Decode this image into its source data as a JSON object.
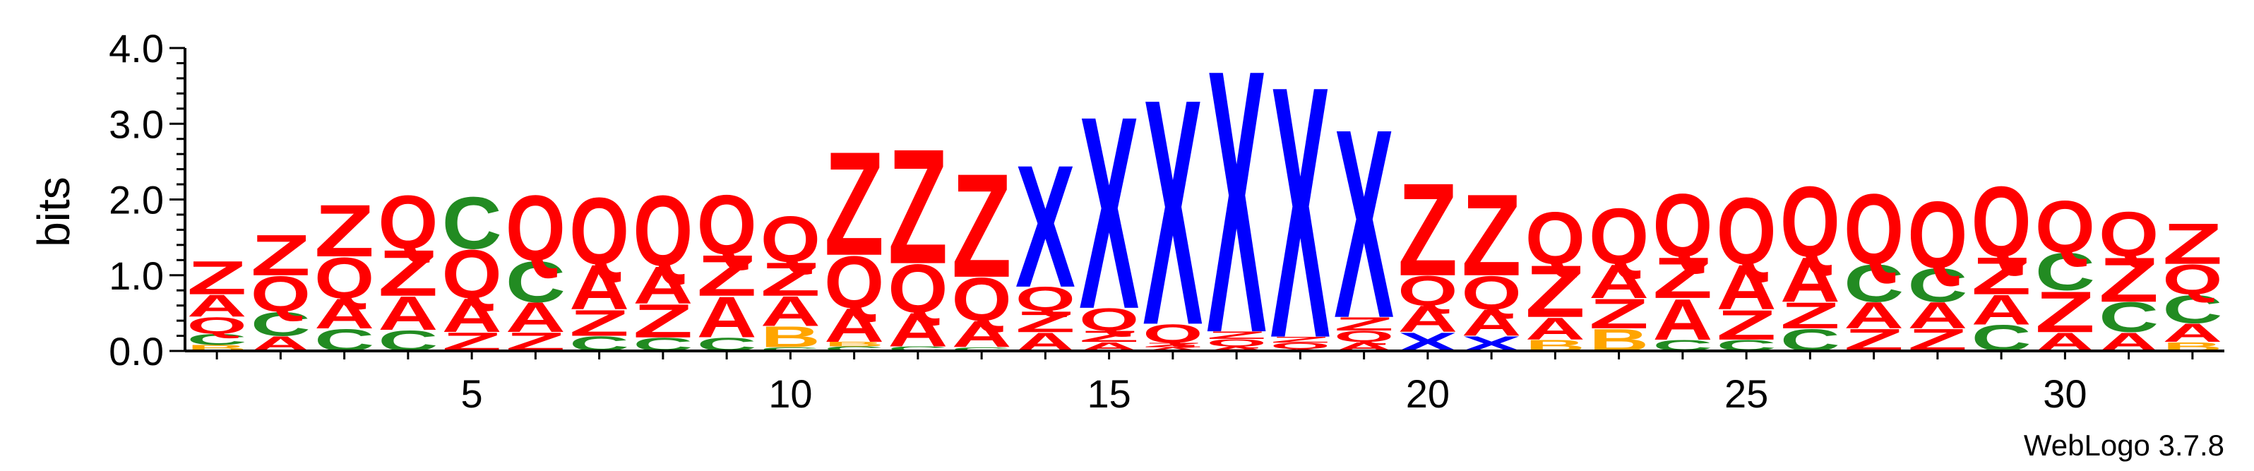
{
  "chart_data": {
    "type": "sequence-logo",
    "ylabel": "bits",
    "ylim": [
      0,
      4
    ],
    "yticks": [
      "0.0",
      "1.0",
      "2.0",
      "3.0",
      "4.0"
    ],
    "xticks": [
      5,
      10,
      15,
      20,
      25,
      30
    ],
    "xlim": [
      0.5,
      32.5
    ],
    "credit": "WebLogo 3.7.8",
    "colors": {
      "Z": "#ff0000",
      "Q": "#ff0000",
      "A": "#ff0000",
      "C": "#228b22",
      "X": "#0000ff",
      "B": "#ffa500"
    },
    "positions": [
      {
        "pos": 1,
        "stack": [
          [
            "B",
            0.08
          ],
          [
            "C",
            0.15
          ],
          [
            "Q",
            0.22
          ],
          [
            "A",
            0.3
          ],
          [
            "Z",
            0.45
          ]
        ]
      },
      {
        "pos": 2,
        "stack": [
          [
            "A",
            0.2
          ],
          [
            "C",
            0.32
          ],
          [
            "Q",
            0.48
          ],
          [
            "Z",
            0.55
          ]
        ]
      },
      {
        "pos": 3,
        "stack": [
          [
            "C",
            0.3
          ],
          [
            "A",
            0.4
          ],
          [
            "Q",
            0.55
          ],
          [
            "Z",
            0.7
          ]
        ]
      },
      {
        "pos": 4,
        "stack": [
          [
            "C",
            0.28
          ],
          [
            "A",
            0.45
          ],
          [
            "Z",
            0.62
          ],
          [
            "Q",
            0.72
          ]
        ]
      },
      {
        "pos": 5,
        "stack": [
          [
            "Z",
            0.25
          ],
          [
            "A",
            0.45
          ],
          [
            "Q",
            0.65
          ],
          [
            "C",
            0.7
          ]
        ]
      },
      {
        "pos": 6,
        "stack": [
          [
            "Z",
            0.25
          ],
          [
            "A",
            0.4
          ],
          [
            "C",
            0.55
          ],
          [
            "Q",
            0.88
          ]
        ]
      },
      {
        "pos": 7,
        "stack": [
          [
            "C",
            0.2
          ],
          [
            "Z",
            0.35
          ],
          [
            "A",
            0.6
          ],
          [
            "Q",
            0.9
          ]
        ]
      },
      {
        "pos": 8,
        "stack": [
          [
            "C",
            0.18
          ],
          [
            "Z",
            0.45
          ],
          [
            "A",
            0.5
          ],
          [
            "Q",
            0.95
          ]
        ]
      },
      {
        "pos": 9,
        "stack": [
          [
            "C",
            0.18
          ],
          [
            "A",
            0.55
          ],
          [
            "Z",
            0.55
          ],
          [
            "Q",
            0.8
          ]
        ]
      },
      {
        "pos": 10,
        "stack": [
          [
            "C",
            0.05
          ],
          [
            "B",
            0.28
          ],
          [
            "A",
            0.4
          ],
          [
            "Z",
            0.45
          ],
          [
            "Q",
            0.62
          ]
        ]
      },
      {
        "pos": 11,
        "stack": [
          [
            "C",
            0.06
          ],
          [
            "B",
            0.06
          ],
          [
            "A",
            0.45
          ],
          [
            "Q",
            0.7
          ],
          [
            "Z",
            1.4
          ]
        ]
      },
      {
        "pos": 12,
        "stack": [
          [
            "C",
            0.06
          ],
          [
            "A",
            0.45
          ],
          [
            "Q",
            0.65
          ],
          [
            "Z",
            1.55
          ]
        ]
      },
      {
        "pos": 13,
        "stack": [
          [
            "C",
            0.05
          ],
          [
            "A",
            0.35
          ],
          [
            "Q",
            0.58
          ],
          [
            "Z",
            1.4
          ]
        ]
      },
      {
        "pos": 14,
        "stack": [
          [
            "A",
            0.25
          ],
          [
            "Z",
            0.28
          ],
          [
            "Q",
            0.32
          ],
          [
            "X",
            1.65
          ]
        ]
      },
      {
        "pos": 15,
        "stack": [
          [
            "A",
            0.12
          ],
          [
            "Z",
            0.15
          ],
          [
            "Q",
            0.3
          ],
          [
            "X",
            2.6
          ]
        ]
      },
      {
        "pos": 16,
        "stack": [
          [
            "A",
            0.05
          ],
          [
            "Z",
            0.06
          ],
          [
            "Q",
            0.25
          ],
          [
            "X",
            3.05
          ]
        ]
      },
      {
        "pos": 17,
        "stack": [
          [
            "A",
            0.06
          ],
          [
            "Q",
            0.1
          ],
          [
            "Z",
            0.1
          ],
          [
            "X",
            3.55
          ]
        ]
      },
      {
        "pos": 18,
        "stack": [
          [
            "A",
            0.03
          ],
          [
            "Q",
            0.08
          ],
          [
            "Z",
            0.08
          ],
          [
            "X",
            3.4
          ]
        ]
      },
      {
        "pos": 19,
        "stack": [
          [
            "A",
            0.12
          ],
          [
            "Q",
            0.15
          ],
          [
            "Z",
            0.18
          ],
          [
            "X",
            2.55
          ]
        ]
      },
      {
        "pos": 20,
        "stack": [
          [
            "X",
            0.25
          ],
          [
            "A",
            0.35
          ],
          [
            "Q",
            0.4
          ],
          [
            "Z",
            1.25
          ]
        ]
      },
      {
        "pos": 21,
        "stack": [
          [
            "X",
            0.2
          ],
          [
            "A",
            0.35
          ],
          [
            "Q",
            0.45
          ],
          [
            "Z",
            1.1
          ]
        ]
      },
      {
        "pos": 22,
        "stack": [
          [
            "B",
            0.15
          ],
          [
            "A",
            0.3
          ],
          [
            "Z",
            0.7
          ],
          [
            "Q",
            0.7
          ]
        ]
      },
      {
        "pos": 23,
        "stack": [
          [
            "B",
            0.3
          ],
          [
            "Z",
            0.4
          ],
          [
            "A",
            0.45
          ],
          [
            "Q",
            0.75
          ]
        ]
      },
      {
        "pos": 24,
        "stack": [
          [
            "C",
            0.15
          ],
          [
            "A",
            0.55
          ],
          [
            "Z",
            0.55
          ],
          [
            "Q",
            0.85
          ]
        ]
      },
      {
        "pos": 25,
        "stack": [
          [
            "C",
            0.15
          ],
          [
            "Z",
            0.4
          ],
          [
            "A",
            0.6
          ],
          [
            "Q",
            0.9
          ]
        ]
      },
      {
        "pos": 26,
        "stack": [
          [
            "C",
            0.3
          ],
          [
            "Z",
            0.35
          ],
          [
            "A",
            0.6
          ],
          [
            "Q",
            0.95
          ]
        ]
      },
      {
        "pos": 27,
        "stack": [
          [
            "Z",
            0.3
          ],
          [
            "A",
            0.35
          ],
          [
            "C",
            0.5
          ],
          [
            "Q",
            0.95
          ]
        ]
      },
      {
        "pos": 28,
        "stack": [
          [
            "Z",
            0.3
          ],
          [
            "A",
            0.35
          ],
          [
            "C",
            0.45
          ],
          [
            "Q",
            0.9
          ]
        ]
      },
      {
        "pos": 29,
        "stack": [
          [
            "C",
            0.35
          ],
          [
            "A",
            0.4
          ],
          [
            "Z",
            0.5
          ],
          [
            "Q",
            0.95
          ]
        ]
      },
      {
        "pos": 30,
        "stack": [
          [
            "A",
            0.25
          ],
          [
            "Z",
            0.55
          ],
          [
            "C",
            0.5
          ],
          [
            "Q",
            0.7
          ]
        ]
      },
      {
        "pos": 31,
        "stack": [
          [
            "A",
            0.25
          ],
          [
            "C",
            0.4
          ],
          [
            "Z",
            0.6
          ],
          [
            "Q",
            0.6
          ]
        ]
      },
      {
        "pos": 32,
        "stack": [
          [
            "B",
            0.12
          ],
          [
            "A",
            0.25
          ],
          [
            "C",
            0.38
          ],
          [
            "Q",
            0.4
          ],
          [
            "Z",
            0.55
          ]
        ]
      }
    ]
  }
}
